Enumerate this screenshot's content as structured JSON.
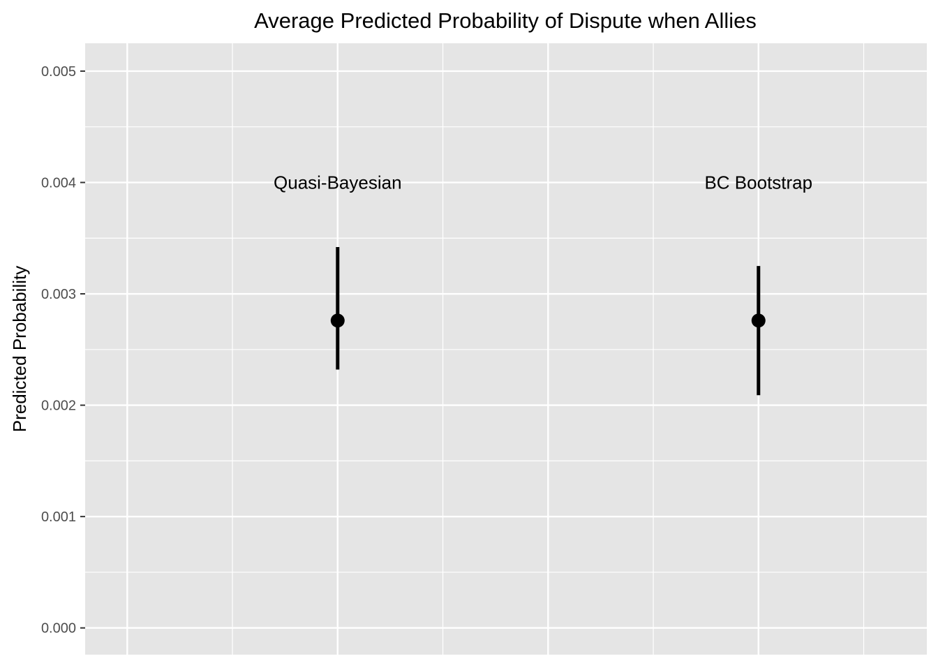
{
  "chart_data": {
    "type": "scatter",
    "title": "Average Predicted Probability of Dispute when Allies",
    "xlabel": "",
    "ylabel": "Predicted Probability",
    "ylim": [
      -0.00024,
      0.00525
    ],
    "y_ticks": [
      "0.000",
      "0.001",
      "0.002",
      "0.003",
      "0.004",
      "0.005"
    ],
    "y_tick_values": [
      0,
      0.001,
      0.002,
      0.003,
      0.004,
      0.005
    ],
    "xlim": [
      0,
      1
    ],
    "x_axis_shown": false,
    "grid": true,
    "background_color": "#e5e5e5",
    "grid_color": "#ffffff",
    "mark_color": "#000000",
    "points": [
      {
        "label": "Quasi-Bayesian",
        "x": 0.3,
        "y": 0.00276,
        "lower": 0.00232,
        "upper": 0.00342,
        "label_y": 0.004
      },
      {
        "label": "BC Bootstrap",
        "x": 0.8,
        "y": 0.00276,
        "lower": 0.00209,
        "upper": 0.00325,
        "label_y": 0.004
      }
    ]
  }
}
